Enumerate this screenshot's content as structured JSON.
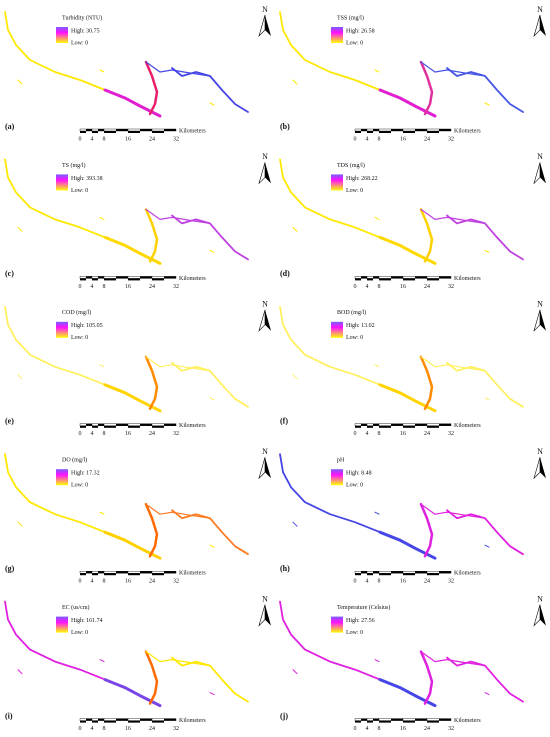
{
  "panels": [
    {
      "letter": "(a)",
      "title": "Turbidity (NTU)",
      "high": "High: 30.75",
      "low": "Low: 0"
    },
    {
      "letter": "(b)",
      "title": "TSS (mg/l)",
      "high": "High: 26.58",
      "low": "Low: 0"
    },
    {
      "letter": "(c)",
      "title": "TS (mg/l)",
      "high": "High: 393.38",
      "low": "Low: 0"
    },
    {
      "letter": "(d)",
      "title": "TDS (mg/l)",
      "high": "High: 268.22",
      "low": "Low: 0"
    },
    {
      "letter": "(e)",
      "title": "COD (mg/l)",
      "high": "High: 105.05",
      "low": "Low: 0"
    },
    {
      "letter": "(f)",
      "title": "BOD (mg/l)",
      "high": "High: 13.02",
      "low": "Low: 0"
    },
    {
      "letter": "(g)",
      "title": "DO (mg/l)",
      "high": "High: 17.32",
      "low": "Low: 0"
    },
    {
      "letter": "(h)",
      "title": "pH",
      "high": "High: 8.48",
      "low": "Low: 0"
    },
    {
      "letter": "(i)",
      "title": "EC (us/cm)",
      "high": "High: 161.74",
      "low": "Low: 0"
    },
    {
      "letter": "(j)",
      "title": "Temperature (Celsius)",
      "high": "High: 27.56",
      "low": "Low: 0"
    }
  ],
  "scale": {
    "ticks": [
      0,
      4,
      8,
      16,
      24,
      32
    ],
    "unit": "Kilometers"
  },
  "north": "N"
}
